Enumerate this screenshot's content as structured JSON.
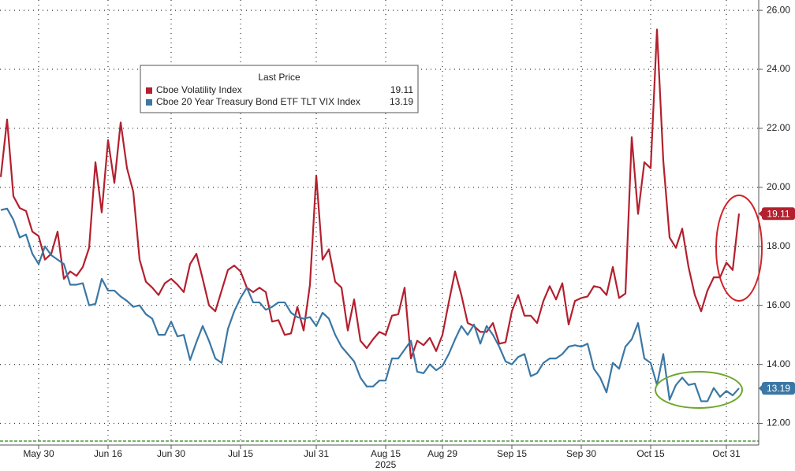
{
  "chart_data": {
    "type": "line",
    "categories": [
      null,
      null,
      null,
      null,
      null,
      null,
      "May 30",
      null,
      null,
      null,
      null,
      null,
      null,
      null,
      null,
      null,
      null,
      "Jun 16",
      null,
      null,
      null,
      null,
      null,
      null,
      null,
      null,
      null,
      "Jun 30",
      null,
      null,
      null,
      null,
      null,
      null,
      null,
      null,
      null,
      null,
      "Jul 15",
      null,
      null,
      null,
      null,
      null,
      null,
      null,
      null,
      null,
      null,
      null,
      "Jul 31",
      null,
      null,
      null,
      null,
      null,
      null,
      null,
      null,
      null,
      null,
      "Aug 15",
      null,
      null,
      null,
      null,
      null,
      null,
      null,
      null,
      "Aug 29",
      null,
      null,
      null,
      null,
      null,
      null,
      null,
      null,
      null,
      null,
      "Sep 15",
      null,
      null,
      null,
      null,
      null,
      null,
      null,
      null,
      null,
      null,
      "Sep 30",
      null,
      null,
      null,
      null,
      null,
      null,
      null,
      null,
      null,
      null,
      "Oct 15",
      null,
      null,
      null,
      null,
      null,
      null,
      null,
      null,
      null,
      null,
      null,
      "Oct 31",
      null,
      null
    ],
    "xlabel": "2025",
    "legend_title": "Last Price",
    "series": [
      {
        "name": "Cboe Volatility Index",
        "color": "#b3202e",
        "values": [
          20.35,
          22.3,
          19.7,
          19.3,
          19.2,
          18.5,
          18.35,
          17.55,
          17.75,
          18.5,
          16.9,
          17.15,
          17.0,
          17.3,
          17.95,
          20.85,
          19.15,
          21.6,
          20.15,
          22.2,
          20.65,
          19.85,
          17.55,
          16.8,
          16.6,
          16.35,
          16.75,
          16.9,
          16.7,
          16.45,
          17.4,
          17.75,
          16.9,
          16.0,
          15.8,
          16.5,
          17.2,
          17.35,
          17.15,
          16.6,
          16.45,
          16.6,
          16.45,
          15.45,
          15.5,
          15.0,
          15.05,
          15.95,
          15.15,
          16.7,
          20.4,
          17.55,
          17.9,
          16.8,
          16.6,
          15.15,
          16.2,
          14.8,
          14.55,
          14.85,
          15.1,
          15.0,
          15.65,
          15.7,
          16.6,
          14.2,
          14.8,
          14.65,
          14.9,
          14.45,
          15.0,
          16.1,
          17.15,
          16.35,
          15.4,
          15.3,
          15.1,
          15.1,
          15.4,
          14.7,
          14.75,
          15.8,
          16.35,
          15.65,
          15.65,
          15.4,
          16.15,
          16.65,
          16.2,
          16.75,
          15.35,
          16.15,
          16.25,
          16.3,
          16.65,
          16.6,
          16.35,
          17.3,
          16.25,
          16.4,
          21.7,
          19.1,
          20.85,
          20.65,
          25.35,
          20.9,
          18.3,
          17.95,
          18.6,
          17.3,
          16.35,
          15.8,
          16.5,
          16.95,
          16.95,
          17.45,
          17.2,
          19.11
        ]
      },
      {
        "name": "Cboe 20 Year Treasury Bond ETF TLT VIX Index",
        "color": "#3a77a5",
        "values": [
          19.23,
          19.28,
          18.9,
          18.3,
          18.4,
          17.75,
          17.4,
          18.0,
          17.7,
          17.55,
          17.4,
          16.7,
          16.7,
          16.75,
          16.0,
          16.05,
          16.9,
          16.5,
          16.5,
          16.3,
          16.15,
          15.95,
          16.0,
          15.7,
          15.55,
          15.0,
          15.0,
          15.45,
          14.95,
          15.0,
          14.15,
          14.75,
          15.3,
          14.8,
          14.2,
          14.05,
          15.2,
          15.8,
          16.25,
          16.6,
          16.1,
          16.1,
          15.85,
          15.95,
          16.1,
          16.1,
          15.75,
          15.6,
          15.55,
          15.6,
          15.3,
          15.75,
          15.55,
          15.0,
          14.6,
          14.35,
          14.1,
          13.55,
          13.25,
          13.25,
          13.45,
          13.45,
          14.2,
          14.2,
          14.5,
          14.8,
          13.75,
          13.7,
          14.0,
          13.8,
          13.95,
          14.35,
          14.85,
          15.3,
          15.0,
          15.35,
          14.7,
          15.3,
          15.0,
          14.6,
          14.1,
          14.0,
          14.25,
          14.35,
          13.6,
          13.7,
          14.05,
          14.2,
          14.2,
          14.35,
          14.6,
          14.65,
          14.6,
          14.7,
          13.85,
          13.55,
          13.05,
          14.05,
          13.85,
          14.6,
          14.85,
          15.4,
          14.2,
          14.05,
          13.3,
          14.35,
          12.8,
          13.3,
          13.55,
          13.3,
          13.35,
          12.75,
          12.75,
          13.2,
          12.9,
          13.1,
          12.95,
          13.19
        ]
      }
    ],
    "ylim": [
      11.4,
      26.35
    ],
    "yticks": [
      {
        "value": 12,
        "label": "12.00"
      },
      {
        "value": 14,
        "label": "14.00"
      },
      {
        "value": 16,
        "label": "16.00"
      },
      {
        "value": 18,
        "label": "18.00"
      },
      {
        "value": 20,
        "label": "20.00"
      },
      {
        "value": 22,
        "label": "22.00"
      },
      {
        "value": 24,
        "label": "24.00"
      },
      {
        "value": 26,
        "label": "26.00"
      }
    ],
    "grid": true
  }
}
